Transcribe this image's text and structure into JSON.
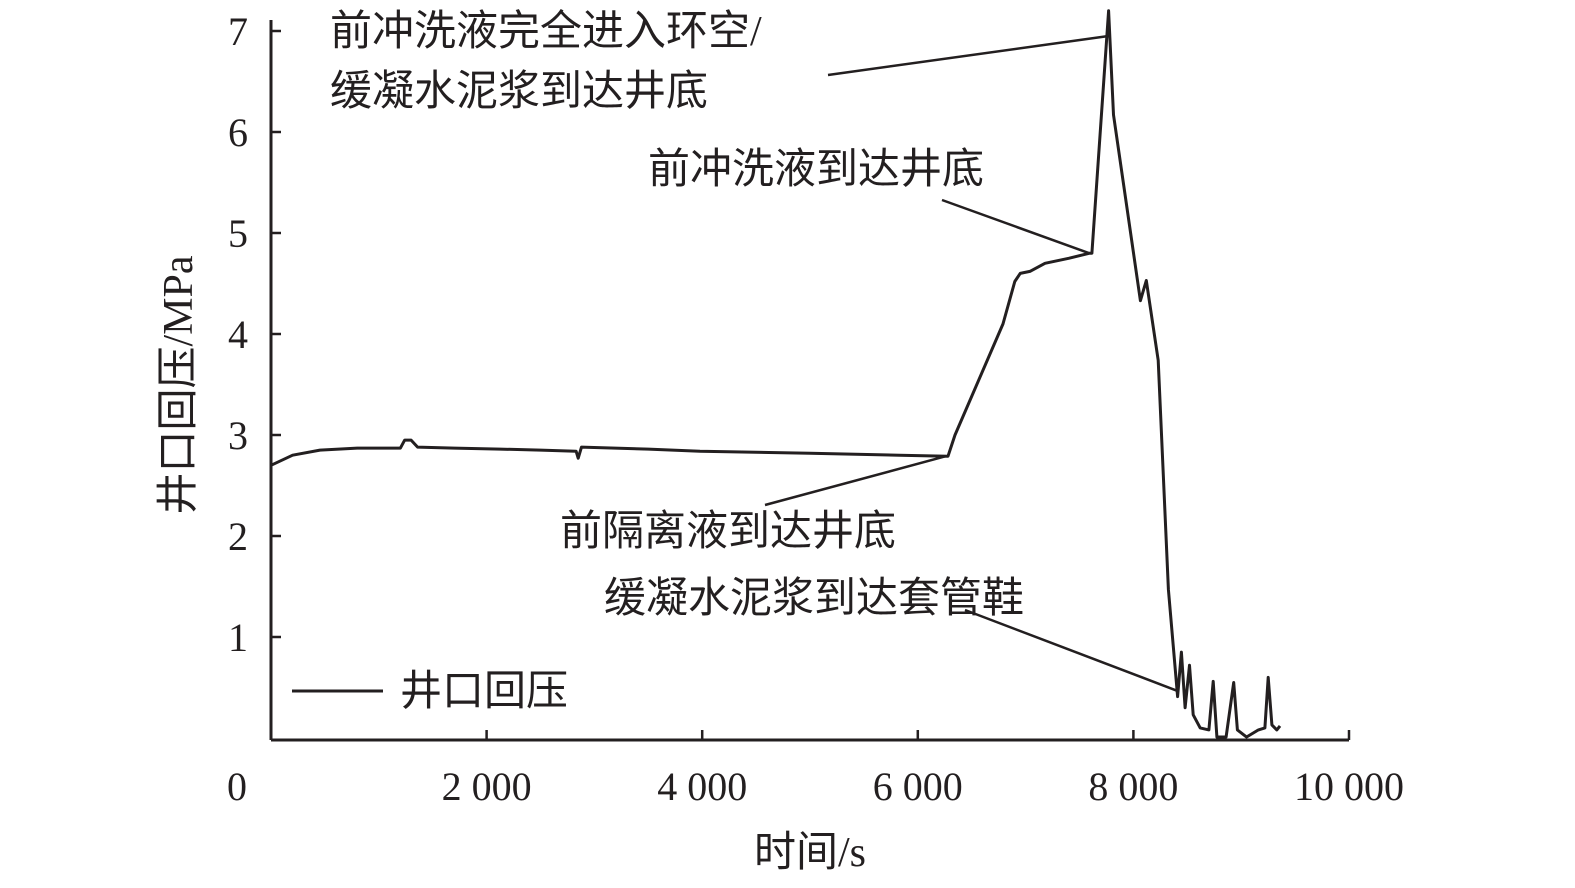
{
  "chart_data": {
    "type": "line",
    "xlabel": "时间/s",
    "ylabel": "井口回压/MPa",
    "xlim": [
      0,
      10000
    ],
    "ylim": [
      0,
      7
    ],
    "x_ticks": [
      0,
      2000,
      4000,
      6000,
      8000,
      10000
    ],
    "x_tick_labels": [
      "0",
      "2 000",
      "4 000",
      "6 000",
      "8 000",
      "10 000"
    ],
    "y_ticks": [
      1,
      2,
      3,
      4,
      5,
      6,
      7
    ],
    "y_tick_labels": [
      "1",
      "2",
      "3",
      "4",
      "5",
      "6",
      "7"
    ],
    "grid": false,
    "legend": {
      "placement": "bottom-left",
      "entries": [
        "井口回压"
      ]
    },
    "series": [
      {
        "name": "井口回压",
        "color": "#231f20",
        "x": [
          0,
          200,
          455,
          800,
          1200,
          1240,
          1300,
          1360,
          1700,
          2125,
          2500,
          2830,
          2850,
          2880,
          3500,
          3980,
          5000,
          5830,
          6280,
          6345,
          6790,
          6900,
          6950,
          7040,
          7180,
          7400,
          7595,
          7615,
          7770,
          7815,
          8065,
          8120,
          8230,
          8325,
          8410,
          8445,
          8480,
          8520,
          8555,
          8620,
          8700,
          8740,
          8775,
          8860,
          8930,
          8965,
          9050,
          9160,
          9220,
          9250,
          9285,
          9330,
          9360
        ],
        "y": [
          2.7,
          2.8,
          2.85,
          2.87,
          2.87,
          2.95,
          2.95,
          2.88,
          2.87,
          2.86,
          2.85,
          2.84,
          2.77,
          2.88,
          2.86,
          2.84,
          2.82,
          2.8,
          2.79,
          3.0,
          4.1,
          4.52,
          4.6,
          4.62,
          4.7,
          4.75,
          4.8,
          4.8,
          7.2,
          6.17,
          4.33,
          4.53,
          3.74,
          1.47,
          0.41,
          0.85,
          0.3,
          0.72,
          0.23,
          0.1,
          0.08,
          0.56,
          0.01,
          0.01,
          0.55,
          0.08,
          0.01,
          0.08,
          0.1,
          0.6,
          0.13,
          0.08,
          0.12
        ]
      }
    ],
    "annotations": [
      {
        "lines": [
          "前冲洗液完全进入环空/",
          "缓凝水泥浆到达井底"
        ],
        "x": 7770,
        "y": 6.95
      },
      {
        "lines": [
          "前冲洗液到达井底"
        ],
        "x": 7590,
        "y": 4.8
      },
      {
        "lines": [
          "前隔离液到达井底"
        ],
        "x": 6260,
        "y": 2.79
      },
      {
        "lines": [
          "缓凝水泥浆到达套管鞋"
        ],
        "x": 8400,
        "y": 0.47
      }
    ]
  }
}
